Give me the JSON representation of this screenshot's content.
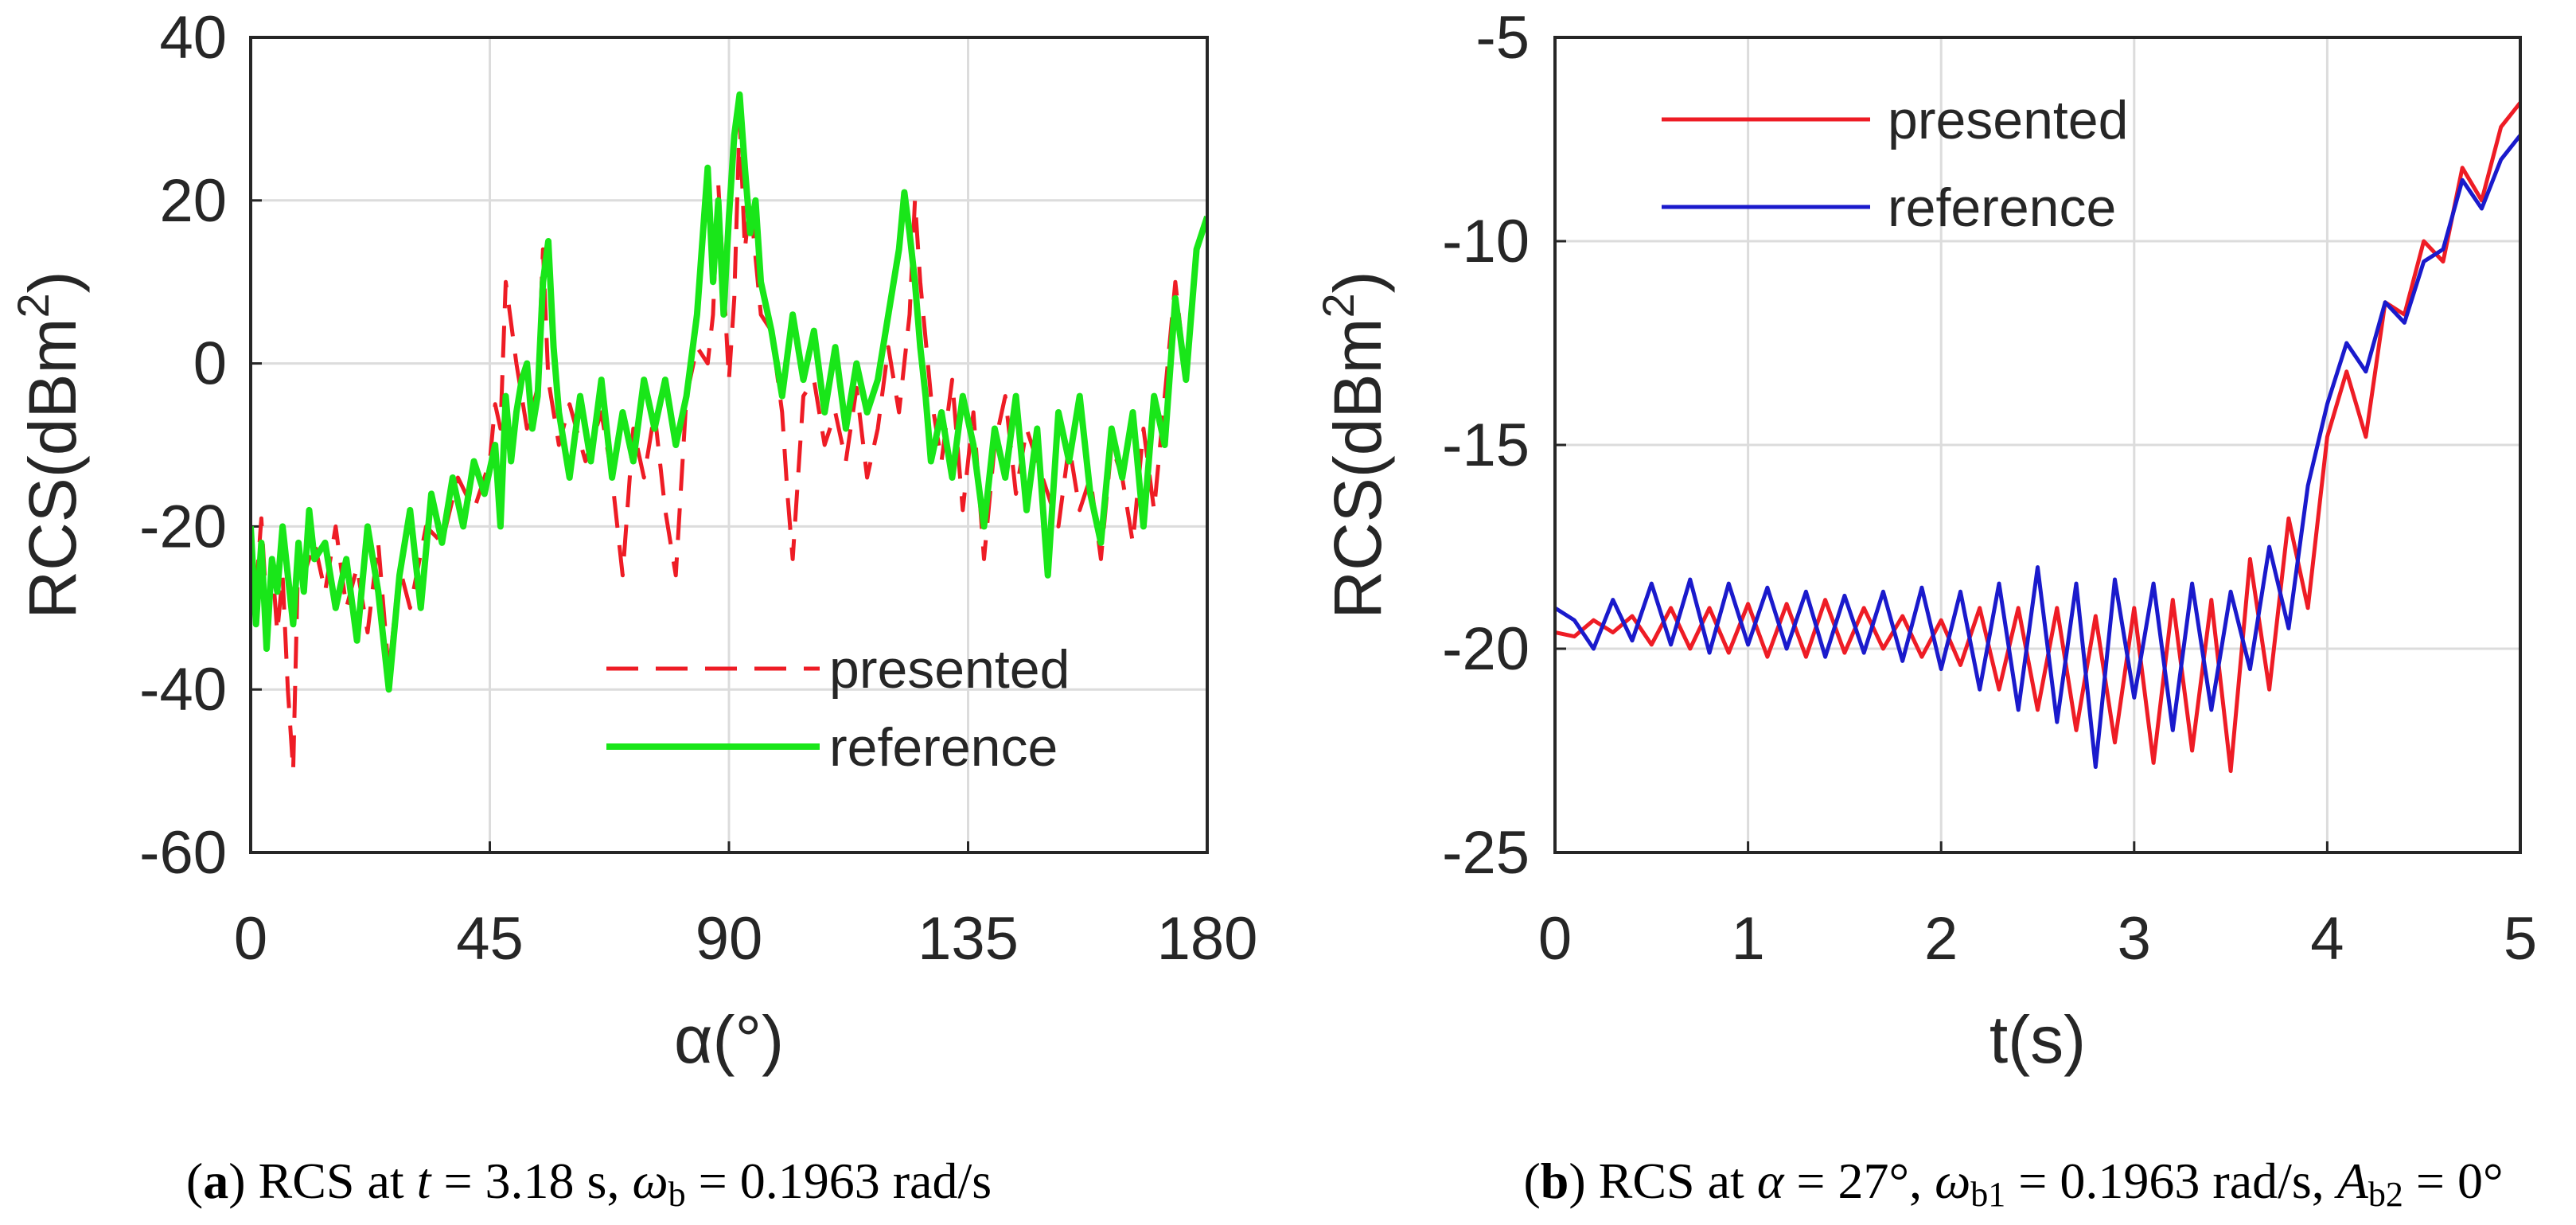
{
  "chart_data": [
    {
      "type": "line",
      "caption": {
        "letter": "a",
        "parts": [
          {
            "t": "(",
            "s": ""
          },
          {
            "t": "a",
            "s": "b"
          },
          {
            "t": ") RCS at ",
            "s": ""
          },
          {
            "t": "t",
            "s": "i"
          },
          {
            "t": " = 3.18 s, ",
            "s": ""
          },
          {
            "t": "ω",
            "s": "i"
          },
          {
            "t": "b",
            "s": "sub"
          },
          {
            "t": " = 0.1963 rad/s",
            "s": ""
          }
        ]
      },
      "xlabel": "α(°)",
      "ylabel": "RCS(dBm",
      "ylabel_sup": "2",
      "ylabel_close": ")",
      "xlim": [
        0,
        180
      ],
      "ylim": [
        -60,
        40
      ],
      "xticks": [
        "0",
        "45",
        "90",
        "135",
        "180"
      ],
      "yticks": [
        "-60",
        "-40",
        "-20",
        "0",
        "20",
        "40"
      ],
      "legend": [
        "presented",
        "reference"
      ],
      "series": [
        {
          "name": "presented",
          "color": "#ee1c25",
          "style": "dashed",
          "x": [
            0,
            1,
            2,
            3,
            4,
            5,
            6,
            7,
            8,
            9,
            10,
            12,
            14,
            16,
            18,
            20,
            22,
            24,
            26,
            28,
            30,
            33,
            36,
            39,
            42,
            45,
            46,
            47,
            48,
            50,
            52,
            54,
            55,
            56,
            58,
            60,
            63,
            66,
            68,
            70,
            72,
            74,
            76,
            78,
            80,
            82,
            84,
            86,
            87,
            88,
            90,
            91,
            92,
            93,
            94,
            96,
            98,
            100,
            101,
            102,
            104,
            106,
            108,
            110,
            112,
            114,
            116,
            118,
            120,
            122,
            124,
            125,
            126,
            128,
            130,
            132,
            134,
            136,
            138,
            140,
            142,
            144,
            146,
            148,
            150,
            152,
            154,
            156,
            158,
            160,
            162,
            164,
            166,
            168,
            170,
            172,
            174,
            176,
            178,
            180
          ],
          "values": [
            -22,
            -28,
            -19,
            -30,
            -24,
            -33,
            -26,
            -40,
            -50,
            -22,
            -26,
            -22,
            -28,
            -20,
            -30,
            -25,
            -33,
            -22,
            -38,
            -25,
            -30,
            -20,
            -22,
            -14,
            -18,
            -12,
            -5,
            -8,
            10,
            0,
            -8,
            -3,
            14,
            -2,
            -10,
            -5,
            -12,
            -6,
            -14,
            -26,
            -8,
            -14,
            -6,
            -18,
            -26,
            -4,
            2,
            0,
            6,
            22,
            -2,
            8,
            30,
            14,
            20,
            6,
            4,
            -6,
            -16,
            -24,
            -4,
            -2,
            -10,
            -6,
            -12,
            -3,
            -14,
            -8,
            2,
            -6,
            6,
            20,
            10,
            -4,
            -12,
            -2,
            -18,
            -6,
            -24,
            -10,
            -4,
            -16,
            -8,
            -12,
            -16,
            -20,
            -10,
            -18,
            -14,
            -24,
            -10,
            -14,
            -22,
            -8,
            -18,
            -4,
            10,
            -2,
            14,
            18
          ]
        },
        {
          "name": "reference",
          "color": "#19e619",
          "style": "solid",
          "x": [
            0,
            1,
            2,
            3,
            4,
            5,
            6,
            7,
            8,
            9,
            10,
            11,
            12,
            14,
            16,
            18,
            20,
            22,
            24,
            26,
            28,
            30,
            32,
            34,
            36,
            38,
            40,
            42,
            44,
            46,
            47,
            48,
            49,
            50,
            51,
            52,
            53,
            54,
            55,
            56,
            57,
            58,
            60,
            62,
            64,
            66,
            68,
            70,
            72,
            74,
            76,
            78,
            80,
            82,
            84,
            86,
            87,
            88,
            89,
            90,
            91,
            92,
            93,
            94,
            95,
            96,
            98,
            100,
            102,
            104,
            106,
            108,
            110,
            112,
            114,
            116,
            118,
            120,
            121,
            122,
            123,
            124,
            125,
            126,
            127,
            128,
            130,
            132,
            134,
            136,
            138,
            140,
            142,
            144,
            146,
            148,
            150,
            152,
            154,
            156,
            158,
            160,
            162,
            164,
            166,
            168,
            170,
            172,
            174,
            176,
            178,
            180
          ],
          "values": [
            -20,
            -32,
            -22,
            -35,
            -24,
            -28,
            -20,
            -26,
            -32,
            -22,
            -28,
            -18,
            -24,
            -22,
            -30,
            -24,
            -34,
            -20,
            -28,
            -40,
            -26,
            -18,
            -30,
            -16,
            -22,
            -14,
            -20,
            -12,
            -16,
            -10,
            -20,
            -4,
            -12,
            -6,
            -2,
            0,
            -8,
            -4,
            10,
            15,
            2,
            -6,
            -14,
            -4,
            -12,
            -2,
            -14,
            -6,
            -12,
            -2,
            -8,
            -2,
            -10,
            -4,
            6,
            24,
            10,
            20,
            6,
            18,
            28,
            33,
            24,
            16,
            20,
            10,
            4,
            -4,
            6,
            -2,
            4,
            -6,
            2,
            -8,
            0,
            -6,
            -2,
            6,
            10,
            14,
            21,
            16,
            10,
            2,
            -4,
            -12,
            -6,
            -14,
            -4,
            -10,
            -20,
            -8,
            -14,
            -4,
            -18,
            -8,
            -26,
            -6,
            -12,
            -4,
            -16,
            -22,
            -8,
            -14,
            -6,
            -20,
            -4,
            -10,
            8,
            -2,
            14,
            18
          ]
        }
      ]
    },
    {
      "type": "line",
      "caption": {
        "letter": "b",
        "parts": [
          {
            "t": "(",
            "s": ""
          },
          {
            "t": "b",
            "s": "b"
          },
          {
            "t": ") RCS at ",
            "s": ""
          },
          {
            "t": "α",
            "s": "i"
          },
          {
            "t": " = 27°, ",
            "s": ""
          },
          {
            "t": "ω",
            "s": "i"
          },
          {
            "t": "b1",
            "s": "sub"
          },
          {
            "t": " = 0.1963 rad/s, ",
            "s": ""
          },
          {
            "t": "A",
            "s": "i"
          },
          {
            "t": "b2",
            "s": "sub"
          },
          {
            "t": " = 0°",
            "s": ""
          }
        ]
      },
      "xlabel": "t(s)",
      "ylabel": "RCS(dBm",
      "ylabel_sup": "2",
      "ylabel_close": ")",
      "xlim": [
        0,
        5
      ],
      "ylim": [
        -25,
        -5
      ],
      "xticks": [
        "0",
        "1",
        "2",
        "3",
        "4",
        "5"
      ],
      "yticks": [
        "-25",
        "-20",
        "-15",
        "-10",
        "-5"
      ],
      "legend": [
        "presented",
        "reference"
      ],
      "series": [
        {
          "name": "presented",
          "color": "#ee1c25",
          "style": "solid",
          "x": [
            0,
            0.1,
            0.2,
            0.3,
            0.4,
            0.5,
            0.6,
            0.7,
            0.8,
            0.9,
            1,
            1.1,
            1.2,
            1.3,
            1.4,
            1.5,
            1.6,
            1.7,
            1.8,
            1.9,
            2,
            2.1,
            2.2,
            2.3,
            2.4,
            2.5,
            2.6,
            2.7,
            2.8,
            2.9,
            3,
            3.1,
            3.2,
            3.3,
            3.4,
            3.5,
            3.6,
            3.7,
            3.8,
            3.9,
            4,
            4.1,
            4.2,
            4.3,
            4.4,
            4.5,
            4.6,
            4.7,
            4.8,
            4.9,
            5
          ],
          "values": [
            -19.6,
            -19.7,
            -19.3,
            -19.6,
            -19.2,
            -19.9,
            -19.0,
            -20.0,
            -19.0,
            -20.1,
            -18.9,
            -20.2,
            -18.9,
            -20.2,
            -18.8,
            -20.1,
            -19.0,
            -20.0,
            -19.2,
            -20.2,
            -19.3,
            -20.4,
            -19.0,
            -21.0,
            -19.0,
            -21.5,
            -19.0,
            -22.0,
            -19.2,
            -22.3,
            -19.0,
            -22.8,
            -18.8,
            -22.5,
            -18.8,
            -23.0,
            -17.8,
            -21.0,
            -16.8,
            -19.0,
            -14.8,
            -13.2,
            -14.8,
            -11.5,
            -11.8,
            -10.0,
            -10.5,
            -8.2,
            -9.0,
            -7.2,
            -6.6
          ]
        },
        {
          "name": "reference",
          "color": "#1a1acc",
          "style": "solid",
          "x": [
            0,
            0.1,
            0.2,
            0.3,
            0.4,
            0.5,
            0.6,
            0.7,
            0.8,
            0.9,
            1,
            1.1,
            1.2,
            1.3,
            1.4,
            1.5,
            1.6,
            1.7,
            1.8,
            1.9,
            2,
            2.1,
            2.2,
            2.3,
            2.4,
            2.5,
            2.6,
            2.7,
            2.8,
            2.9,
            3,
            3.1,
            3.2,
            3.3,
            3.4,
            3.5,
            3.6,
            3.7,
            3.8,
            3.9,
            4,
            4.1,
            4.2,
            4.3,
            4.4,
            4.5,
            4.6,
            4.7,
            4.8,
            4.9,
            5
          ],
          "values": [
            -19.0,
            -19.3,
            -20.0,
            -18.8,
            -19.8,
            -18.4,
            -19.9,
            -18.3,
            -20.1,
            -18.4,
            -19.9,
            -18.5,
            -20.0,
            -18.6,
            -20.2,
            -18.7,
            -20.1,
            -18.6,
            -20.3,
            -18.5,
            -20.5,
            -18.6,
            -21.0,
            -18.4,
            -21.5,
            -18.0,
            -21.8,
            -18.4,
            -22.9,
            -18.3,
            -21.2,
            -18.4,
            -22.0,
            -18.4,
            -21.5,
            -18.6,
            -20.5,
            -17.5,
            -19.5,
            -16.0,
            -14.0,
            -12.5,
            -13.2,
            -11.5,
            -12.0,
            -10.5,
            -10.2,
            -8.5,
            -9.2,
            -8.0,
            -7.4
          ]
        }
      ]
    }
  ]
}
